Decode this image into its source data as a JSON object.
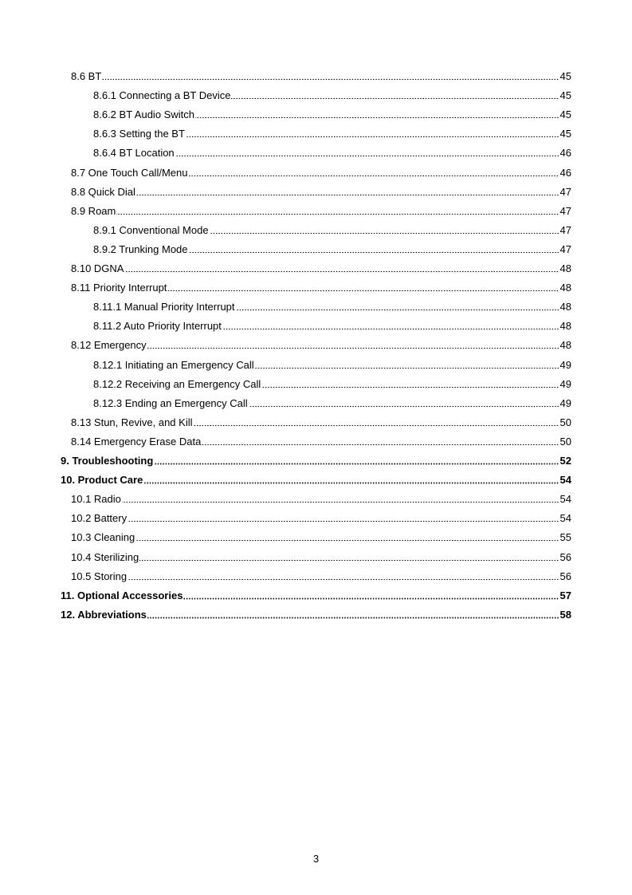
{
  "toc": [
    {
      "level": 2,
      "title": "8.6 BT",
      "page": "45"
    },
    {
      "level": 3,
      "title": "8.6.1 Connecting a BT Device",
      "page": "45"
    },
    {
      "level": 3,
      "title": "8.6.2 BT Audio Switch",
      "page": "45"
    },
    {
      "level": 3,
      "title": "8.6.3 Setting the BT",
      "page": "45"
    },
    {
      "level": 3,
      "title": "8.6.4 BT Location",
      "page": "46"
    },
    {
      "level": 2,
      "title": "8.7 One Touch Call/Menu",
      "page": "46"
    },
    {
      "level": 2,
      "title": "8.8 Quick Dial",
      "page": "47"
    },
    {
      "level": 2,
      "title": "8.9 Roam",
      "page": "47"
    },
    {
      "level": 3,
      "title": "8.9.1 Conventional Mode",
      "page": "47"
    },
    {
      "level": 3,
      "title": "8.9.2 Trunking Mode",
      "page": "47"
    },
    {
      "level": 2,
      "title": "8.10 DGNA",
      "page": "48"
    },
    {
      "level": 2,
      "title": "8.11 Priority Interrupt",
      "page": "48"
    },
    {
      "level": 3,
      "title": "8.11.1 Manual Priority Interrupt",
      "page": "48"
    },
    {
      "level": 3,
      "title": "8.11.2 Auto Priority Interrupt",
      "page": "48"
    },
    {
      "level": 2,
      "title": "8.12 Emergency",
      "page": "48"
    },
    {
      "level": 3,
      "title": "8.12.1 Initiating an Emergency Call",
      "page": "49"
    },
    {
      "level": 3,
      "title": "8.12.2 Receiving an Emergency Call",
      "page": "49"
    },
    {
      "level": 3,
      "title": "8.12.3 Ending an Emergency Call",
      "page": "49"
    },
    {
      "level": 2,
      "title": "8.13 Stun, Revive, and Kill",
      "page": "50"
    },
    {
      "level": 2,
      "title": "8.14 Emergency Erase Data",
      "page": "50"
    },
    {
      "level": 1,
      "title": "9. Troubleshooting",
      "page": "52"
    },
    {
      "level": 1,
      "title": "10. Product Care",
      "page": "54"
    },
    {
      "level": 2,
      "title": "10.1 Radio",
      "page": "54"
    },
    {
      "level": 2,
      "title": "10.2 Battery",
      "page": "54"
    },
    {
      "level": 2,
      "title": "10.3 Cleaning",
      "page": "55"
    },
    {
      "level": 2,
      "title": "10.4 Sterilizing",
      "page": "56"
    },
    {
      "level": 2,
      "title": "10.5 Storing",
      "page": "56"
    },
    {
      "level": 1,
      "title": "11. Optional Accessories",
      "page": "57"
    },
    {
      "level": 1,
      "title": "12. Abbreviations",
      "page": "58"
    }
  ],
  "footer": {
    "page_number": "3"
  }
}
